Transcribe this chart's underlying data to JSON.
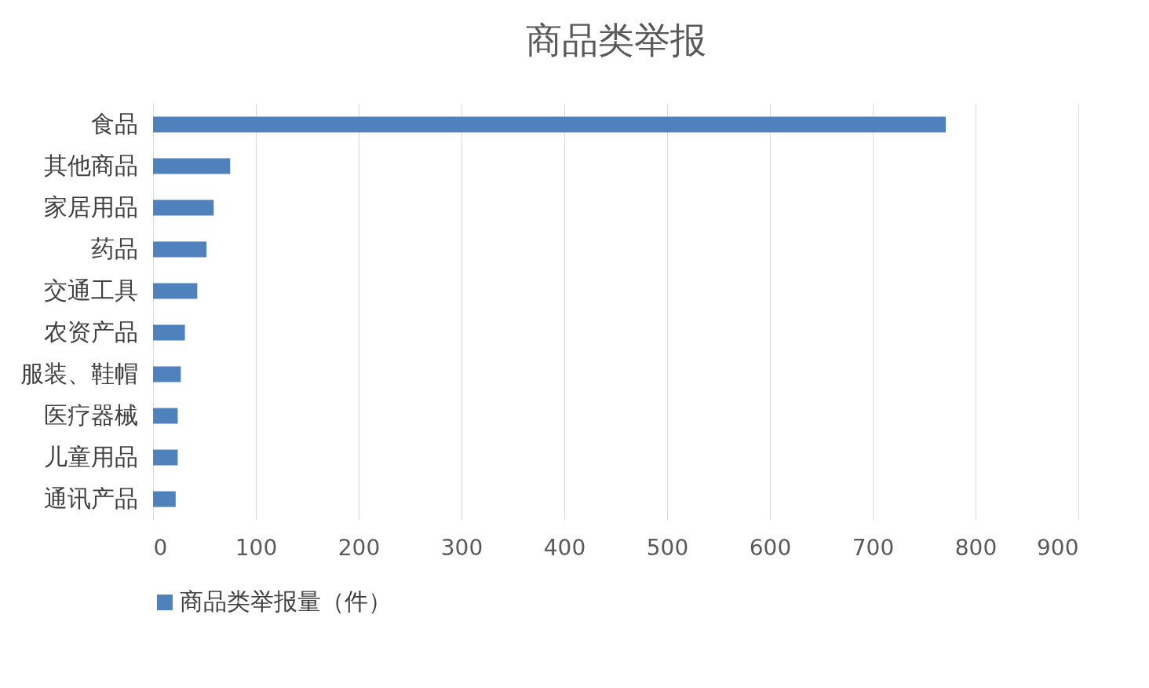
{
  "chart_data": {
    "type": "bar",
    "orientation": "horizontal",
    "title": "商品类举报",
    "categories": [
      "食品",
      "其他商品",
      "家居用品",
      "药品",
      "交通工具",
      "农资产品",
      "服装、鞋帽",
      "医疗器械",
      "儿童用品",
      "通讯产品"
    ],
    "series": [
      {
        "name": "商品类举报量（件）",
        "color": "#4f81bd",
        "values": [
          771,
          75,
          59,
          52,
          43,
          31,
          27,
          24,
          24,
          22
        ]
      }
    ],
    "xlim": [
      0,
      900
    ],
    "xticks": [
      0,
      100,
      200,
      300,
      400,
      500,
      600,
      700,
      800,
      900
    ],
    "grid": "x",
    "legend": "bottom"
  }
}
